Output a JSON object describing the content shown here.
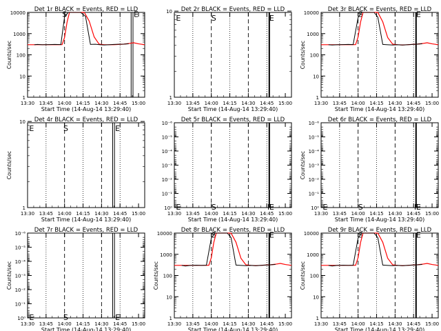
{
  "figure": {
    "common_xlabel": "Start Time (14-Aug-14 13:29:40)",
    "ylabel": "Counts/sec"
  },
  "chart_data": [
    {
      "type": "line",
      "title": "Det 1r BLACK = Events, RED = LLD",
      "xlabel": "Start Time (14-Aug-14 13:29:40)",
      "ylabel": "Counts/sec",
      "log_y": true,
      "ylim_exp": [
        0,
        4
      ],
      "ytick_exp": [
        0,
        1,
        2,
        3,
        4
      ],
      "ytick_labels": [
        "1",
        "10",
        "100",
        "1000",
        "10000"
      ],
      "xlim": [
        0,
        95
      ],
      "xticks": [
        0,
        15,
        30,
        45,
        60,
        75,
        90
      ],
      "xtick_labels": [
        "13:30",
        "13:45",
        "14:00",
        "14:15",
        "14:30",
        "14:45",
        "15:00"
      ],
      "dotted_x": [
        15,
        45,
        75
      ],
      "dashed_x": [
        30,
        60
      ],
      "solid_x": [
        84,
        85.5
      ],
      "solid_width": 1,
      "letters": {
        "S": 30,
        "E": 88
      },
      "letter_exp": 3.95,
      "events": {
        "x": [
          5.5,
          8,
          12,
          18,
          22,
          27,
          30,
          33,
          36,
          39,
          43,
          47,
          51,
          55,
          59,
          62,
          66,
          70,
          74,
          78,
          82
        ],
        "y": [
          300,
          310,
          300,
          305,
          310,
          305,
          6200,
          10500,
          11500,
          12000,
          11700,
          6500,
          310,
          315,
          300,
          290,
          300,
          310,
          315,
          320,
          330
        ]
      },
      "lld": {
        "x": [
          0,
          5,
          10,
          15,
          20,
          25,
          28,
          30,
          32,
          34,
          38,
          42,
          46,
          50,
          54,
          58,
          62,
          66,
          70,
          74,
          78,
          82,
          86,
          90,
          95
        ],
        "y": [
          300,
          300,
          300,
          300,
          300,
          300,
          305,
          650,
          3400,
          10000,
          11800,
          11900,
          11500,
          3900,
          700,
          320,
          300,
          300,
          300,
          310,
          320,
          340,
          370,
          330,
          300
        ]
      },
      "grid": false
    },
    {
      "type": "line",
      "title": "Det 2r BLACK = Events, RED = LLD",
      "xlabel": "Start Time (14-Aug-14 13:29:40)",
      "ylabel": "",
      "log_y": true,
      "ylim_exp": [
        0,
        0.985
      ],
      "ytick_exp": [
        0,
        1
      ],
      "ytick_labels": [
        "1",
        "10"
      ],
      "xlim": [
        0,
        95
      ],
      "xticks": [
        0,
        15,
        30,
        45,
        60,
        75,
        90
      ],
      "xtick_labels": [
        "13:30",
        "13:45",
        "14:00",
        "14:15",
        "14:30",
        "14:45",
        "15:00"
      ],
      "dotted_x": [
        15,
        45,
        75
      ],
      "dashed_x": [
        30,
        60
      ],
      "solid_x": [
        77
      ],
      "solid_width": 2,
      "letters": {
        "S": 32,
        "E": 79
      },
      "letter_exp": 0.93,
      "extra_letters": [
        {
          "t": "E",
          "x": 1
        }
      ],
      "events": null,
      "lld": null,
      "grid": false
    },
    {
      "type": "line",
      "title": "Det 3r BLACK = Events, RED = LLD",
      "xlabel": "Start Time (14-Aug-14 13:29:40)",
      "ylabel": "Counts/sec",
      "log_y": true,
      "ylim_exp": [
        0,
        4
      ],
      "ytick_exp": [
        0,
        1,
        2,
        3,
        4
      ],
      "ytick_labels": [
        "1",
        "10",
        "100",
        "1000",
        "10000"
      ],
      "xlim": [
        0,
        95
      ],
      "xticks": [
        0,
        15,
        30,
        45,
        60,
        75,
        90
      ],
      "xtick_labels": [
        "13:30",
        "13:45",
        "14:00",
        "14:15",
        "14:30",
        "14:45",
        "15:00"
      ],
      "dotted_x": [
        15,
        45,
        75
      ],
      "dashed_x": [
        30,
        60
      ],
      "solid_x": [
        77
      ],
      "solid_width": 2,
      "letters": {
        "S": 32,
        "E": 79
      },
      "letter_exp": 3.95,
      "events": {
        "x": [
          6,
          9,
          13,
          18,
          22,
          26,
          30,
          33,
          36,
          39,
          43,
          46,
          50,
          54,
          58,
          62,
          66,
          70,
          74,
          78,
          82
        ],
        "y": [
          300,
          290,
          300,
          305,
          310,
          305,
          5800,
          10000,
          11500,
          12000,
          11300,
          6000,
          310,
          300,
          290,
          300,
          290,
          300,
          310,
          320,
          330
        ]
      },
      "lld": {
        "x": [
          0,
          5,
          10,
          15,
          20,
          25,
          28,
          30,
          32,
          34,
          38,
          42,
          46,
          50,
          54,
          58,
          62,
          66,
          70,
          74,
          78,
          82,
          86,
          90,
          95
        ],
        "y": [
          300,
          300,
          300,
          300,
          300,
          300,
          305,
          700,
          3500,
          10500,
          11800,
          11900,
          11400,
          3600,
          650,
          320,
          300,
          290,
          300,
          310,
          320,
          340,
          370,
          330,
          300
        ]
      },
      "grid": false
    },
    {
      "type": "line",
      "title": "Det 4r BLACK = Events, RED = LLD",
      "xlabel": "Start Time (14-Aug-14 13:29:40)",
      "ylabel": "Counts/sec",
      "log_y": true,
      "ylim_exp": [
        0,
        0.985
      ],
      "ytick_exp": [
        0,
        1
      ],
      "ytick_labels": [
        "1",
        "10"
      ],
      "xlim": [
        0,
        95
      ],
      "xticks": [
        0,
        15,
        30,
        45,
        60,
        75,
        90
      ],
      "xtick_labels": [
        "13:30",
        "13:45",
        "14:00",
        "14:15",
        "14:30",
        "14:45",
        "15:00"
      ],
      "dotted_x": [
        15,
        45,
        75
      ],
      "dashed_x": [
        30,
        60
      ],
      "solid_x": [
        69,
        70.5
      ],
      "solid_width": 1,
      "letters": {
        "S": 31,
        "E": 73
      },
      "letter_exp": 0.93,
      "extra_letters": [
        {
          "t": "E",
          "x": 1
        }
      ],
      "events": null,
      "lld": null,
      "grid": false
    },
    {
      "type": "line",
      "title": "Det 5r BLACK = Events, RED = LLD",
      "xlabel": "Start Time (14-Aug-14 13:29:40)",
      "ylabel": "",
      "log_y": true,
      "ylim_exp": [
        0,
        -6
      ],
      "ytick_exp": [
        0,
        -1,
        -2,
        -3,
        -4,
        -5,
        -6
      ],
      "ytick_labels": [
        "10⁰",
        "10⁻¹",
        "10⁻²",
        "10⁻³",
        "10⁻⁴",
        "10⁻⁵",
        "10⁻⁶"
      ],
      "xlim": [
        0,
        95
      ],
      "xticks": [
        0,
        15,
        30,
        45,
        60,
        75,
        90
      ],
      "xtick_labels": [
        "13:30",
        "13:45",
        "14:00",
        "14:15",
        "14:30",
        "14:45",
        "15:00"
      ],
      "dotted_x": [
        15,
        45,
        75
      ],
      "dashed_x": [
        30,
        60
      ],
      "solid_x": [
        77
      ],
      "solid_width": 2,
      "letters": {
        "S": 32,
        "E": 79
      },
      "letter_exp": -0.1,
      "extra_letters": [
        {
          "t": "E",
          "x": 1
        },
        {
          "t": "F",
          "x": 75
        }
      ],
      "events": null,
      "lld": null,
      "grid": false
    },
    {
      "type": "line",
      "title": "Det 6r BLACK = Events, RED = LLD",
      "xlabel": "Start Time (14-Aug-14 13:29:40)",
      "ylabel": "Counts/sec",
      "log_y": true,
      "ylim_exp": [
        0,
        -6
      ],
      "ytick_exp": [
        0,
        -1,
        -2,
        -3,
        -4,
        -5,
        -6
      ],
      "ytick_labels": [
        "10⁰",
        "10⁻¹",
        "10⁻²",
        "10⁻³",
        "10⁻⁴",
        "10⁻⁵",
        "10⁻⁶"
      ],
      "xlim": [
        0,
        95
      ],
      "xticks": [
        0,
        15,
        30,
        45,
        60,
        75,
        90
      ],
      "xtick_labels": [
        "13:30",
        "13:45",
        "14:00",
        "14:15",
        "14:30",
        "14:45",
        "15:00"
      ],
      "dotted_x": [
        15,
        45,
        75
      ],
      "dashed_x": [
        30,
        60
      ],
      "solid_x": [
        77
      ],
      "solid_width": 2,
      "letters": {
        "S": 32,
        "E": 79
      },
      "letter_exp": -0.1,
      "extra_letters": [
        {
          "t": "E",
          "x": 1
        },
        {
          "t": "F",
          "x": 75
        }
      ],
      "events": null,
      "lld": null,
      "grid": false
    },
    {
      "type": "line",
      "title": "Det 7r BLACK = Events, RED = LLD",
      "xlabel": "Start Time (14-Aug-14 13:29:40)",
      "ylabel": "Counts/sec",
      "log_y": true,
      "ylim_exp": [
        0,
        -6
      ],
      "ytick_exp": [
        0,
        -1,
        -2,
        -3,
        -4,
        -5,
        -6
      ],
      "ytick_labels": [
        "10⁰",
        "10⁻¹",
        "10⁻²",
        "10⁻³",
        "10⁻⁴",
        "10⁻⁵",
        "10⁻⁶"
      ],
      "xlim": [
        0,
        95
      ],
      "xticks": [
        0,
        15,
        30,
        45,
        60,
        75,
        90
      ],
      "xtick_labels": [
        "13:30",
        "13:45",
        "14:00",
        "14:15",
        "14:30",
        "14:45",
        "15:00"
      ],
      "dotted_x": [
        15,
        45,
        75
      ],
      "dashed_x": [
        30,
        60
      ],
      "solid_x": [
        69,
        70.5
      ],
      "solid_width": 1,
      "letters": {
        "S": 31,
        "E": 73
      },
      "letter_exp": -0.1,
      "extra_letters": [
        {
          "t": "E",
          "x": 1
        }
      ],
      "events": null,
      "lld": null,
      "grid": false
    },
    {
      "type": "line",
      "title": "Det 8r BLACK = Events, RED = LLD",
      "xlabel": "Start Time (14-Aug-14 13:29:40)",
      "ylabel": "Counts/sec",
      "log_y": true,
      "ylim_exp": [
        0,
        4
      ],
      "ytick_exp": [
        0,
        1,
        2,
        3,
        4
      ],
      "ytick_labels": [
        "1",
        "10",
        "100",
        "1000",
        "10000"
      ],
      "xlim": [
        0,
        95
      ],
      "xticks": [
        0,
        15,
        30,
        45,
        60,
        75,
        90
      ],
      "xtick_labels": [
        "13:30",
        "13:45",
        "14:00",
        "14:15",
        "14:30",
        "14:45",
        "15:00"
      ],
      "dotted_x": [
        15,
        45,
        75
      ],
      "dashed_x": [
        30,
        60
      ],
      "solid_x": [
        77
      ],
      "solid_width": 2,
      "letters": {
        "S": 32,
        "E": 79
      },
      "letter_exp": 3.95,
      "events": {
        "x": [
          6,
          9,
          13,
          18,
          22,
          26,
          30,
          33,
          36,
          39,
          43,
          46,
          50,
          54,
          58,
          62,
          66,
          70,
          74,
          78,
          82
        ],
        "y": [
          300,
          280,
          300,
          305,
          300,
          305,
          5900,
          10200,
          11500,
          12000,
          11400,
          6100,
          310,
          300,
          290,
          300,
          290,
          300,
          310,
          320,
          330
        ]
      },
      "lld": {
        "x": [
          0,
          5,
          10,
          15,
          20,
          25,
          28,
          30,
          32,
          34,
          38,
          42,
          46,
          50,
          54,
          58,
          62,
          66,
          70,
          74,
          78,
          82,
          86,
          90,
          95
        ],
        "y": [
          300,
          300,
          300,
          300,
          300,
          300,
          305,
          700,
          3600,
          10500,
          11800,
          11900,
          11400,
          3700,
          650,
          320,
          300,
          290,
          300,
          310,
          320,
          340,
          370,
          330,
          300
        ]
      },
      "grid": false
    },
    {
      "type": "line",
      "title": "Det 9r BLACK = Events, RED = LLD",
      "xlabel": "Start Time (14-Aug-14 13:29:40)",
      "ylabel": "Counts/sec",
      "log_y": true,
      "ylim_exp": [
        0,
        4
      ],
      "ytick_exp": [
        0,
        1,
        2,
        3,
        4
      ],
      "ytick_labels": [
        "1",
        "10",
        "100",
        "1000",
        "10000"
      ],
      "xlim": [
        0,
        95
      ],
      "xticks": [
        0,
        15,
        30,
        45,
        60,
        75,
        90
      ],
      "xtick_labels": [
        "13:30",
        "13:45",
        "14:00",
        "14:15",
        "14:30",
        "14:45",
        "15:00"
      ],
      "dotted_x": [
        15,
        45,
        75
      ],
      "dashed_x": [
        30,
        60
      ],
      "solid_x": [
        77
      ],
      "solid_width": 2,
      "letters": {
        "S": 32,
        "E": 79
      },
      "letter_exp": 3.95,
      "events": {
        "x": [
          6,
          9,
          13,
          18,
          22,
          26,
          30,
          33,
          36,
          39,
          43,
          46,
          50,
          54,
          58,
          62,
          66,
          70,
          74,
          78,
          82
        ],
        "y": [
          300,
          280,
          300,
          305,
          300,
          305,
          5900,
          10200,
          11500,
          12000,
          11400,
          6100,
          310,
          300,
          290,
          300,
          290,
          300,
          310,
          320,
          330
        ]
      },
      "lld": {
        "x": [
          0,
          5,
          10,
          15,
          20,
          25,
          28,
          30,
          32,
          34,
          38,
          42,
          46,
          50,
          54,
          58,
          62,
          66,
          70,
          74,
          78,
          82,
          86,
          90,
          95
        ],
        "y": [
          300,
          300,
          300,
          300,
          300,
          300,
          305,
          700,
          3600,
          10500,
          11800,
          11900,
          11400,
          3700,
          650,
          320,
          300,
          290,
          300,
          310,
          320,
          340,
          370,
          330,
          300
        ]
      },
      "grid": false
    }
  ],
  "colors": {
    "axis": "#000000",
    "events": "#000000",
    "lld": "#ff0000"
  }
}
